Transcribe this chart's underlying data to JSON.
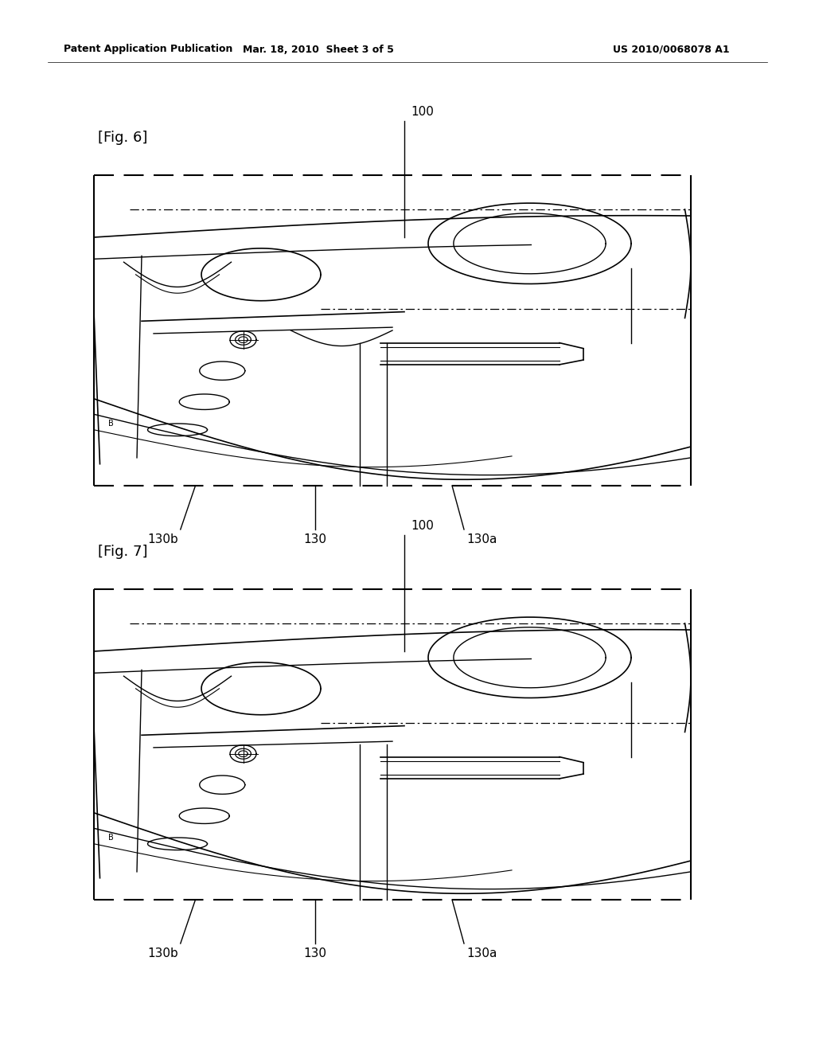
{
  "page_width": 10.24,
  "page_height": 13.2,
  "bg_color": "#ffffff",
  "header_left": "Patent Application Publication",
  "header_center": "Mar. 18, 2010  Sheet 3 of 5",
  "header_right": "US 2010/0068078 A1",
  "fig6_label": "[Fig. 6]",
  "fig7_label": "[Fig. 7]",
  "ref_100": "100",
  "ref_130": "130",
  "ref_130a": "130a",
  "ref_130b": "130b",
  "line_color": "#000000"
}
